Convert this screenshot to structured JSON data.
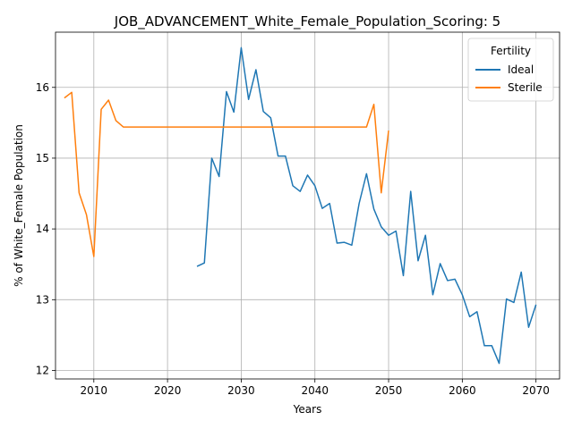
{
  "chart_data": {
    "type": "line",
    "title": "JOB_ADVANCEMENT_White_Female_Population_Scoring: 5",
    "xlabel": "Years",
    "ylabel": "% of White_Female Population",
    "xlim": [
      2004.8,
      2073.2
    ],
    "ylim": [
      11.88,
      16.78
    ],
    "xticks": [
      2010,
      2020,
      2030,
      2040,
      2050,
      2060,
      2070
    ],
    "yticks": [
      12,
      13,
      14,
      15,
      16
    ],
    "grid": true,
    "legend": {
      "title": "Fertility",
      "placement": "top-right"
    },
    "series": [
      {
        "name": "Ideal",
        "color": "#1f77b4",
        "x": [
          2024,
          2025,
          2026,
          2027,
          2028,
          2029,
          2030,
          2031,
          2032,
          2033,
          2034,
          2035,
          2036,
          2037,
          2038,
          2039,
          2040,
          2041,
          2042,
          2043,
          2044,
          2045,
          2046,
          2047,
          2048,
          2049,
          2050,
          2051,
          2052,
          2053,
          2054,
          2055,
          2056,
          2057,
          2058,
          2059,
          2060,
          2061,
          2062,
          2063,
          2064,
          2065,
          2066,
          2067,
          2068,
          2069,
          2070
        ],
        "y": [
          13.47,
          13.52,
          15.0,
          14.74,
          15.94,
          15.65,
          16.56,
          15.83,
          16.25,
          15.66,
          15.57,
          15.03,
          15.03,
          14.61,
          14.53,
          14.76,
          14.61,
          14.29,
          14.36,
          13.8,
          13.81,
          13.77,
          14.36,
          14.78,
          14.28,
          14.03,
          13.91,
          13.97,
          13.34,
          14.53,
          13.55,
          13.91,
          13.07,
          13.51,
          13.27,
          13.29,
          13.07,
          12.76,
          12.83,
          12.35,
          12.35,
          12.1,
          13.01,
          12.96,
          13.39,
          12.61,
          12.93
        ]
      },
      {
        "name": "Sterile",
        "color": "#ff7f0e",
        "x": [
          2006,
          2007,
          2008,
          2009,
          2010,
          2011,
          2012,
          2013,
          2014,
          2015,
          2020,
          2025,
          2030,
          2035,
          2040,
          2045,
          2047,
          2048,
          2049,
          2050
        ],
        "y": [
          15.85,
          15.93,
          14.51,
          14.2,
          13.61,
          15.69,
          15.82,
          15.53,
          15.44,
          15.44,
          15.44,
          15.44,
          15.44,
          15.44,
          15.44,
          15.44,
          15.44,
          15.76,
          14.51,
          15.39
        ]
      }
    ]
  }
}
